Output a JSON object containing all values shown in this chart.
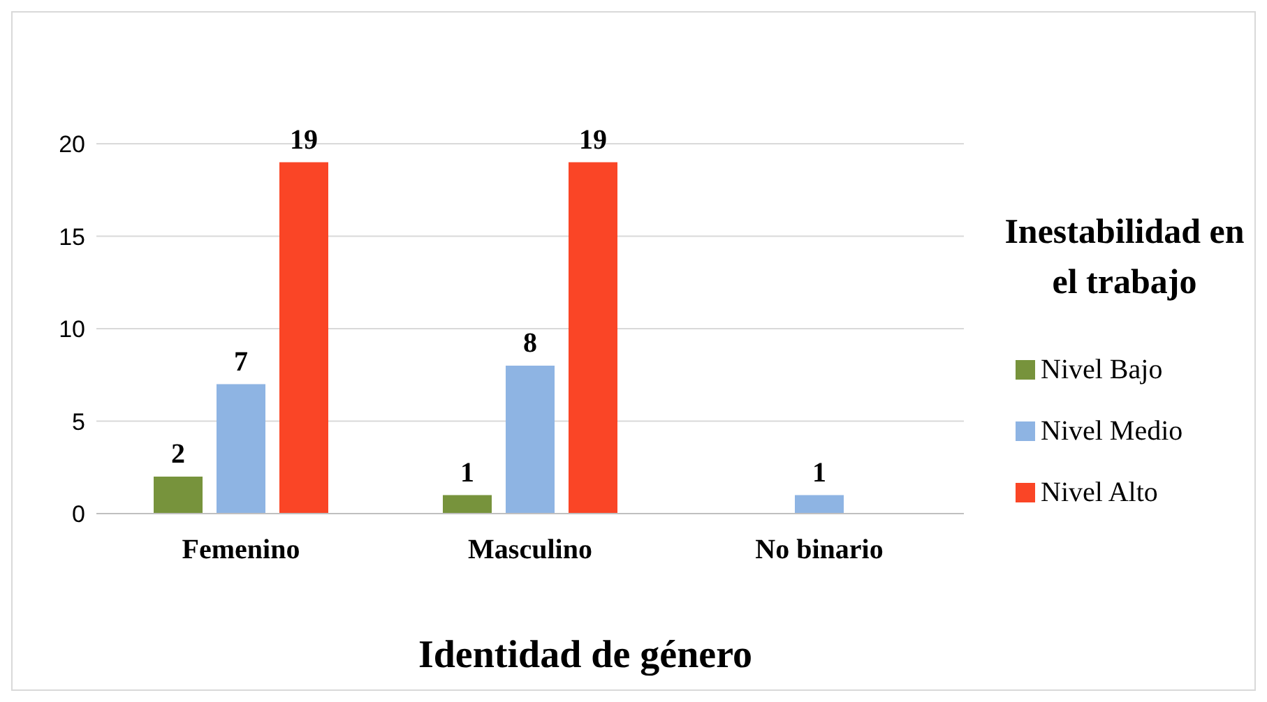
{
  "chart_data": {
    "type": "bar",
    "xlabel": "Identidad de género",
    "legend_title": "Inestabilidad en el trabajo",
    "categories": [
      "Femenino",
      "Masculino",
      "No binario"
    ],
    "series": [
      {
        "name": "Nivel Bajo",
        "color": "#77933c",
        "values": [
          2,
          1,
          null
        ]
      },
      {
        "name": "Nivel Medio",
        "color": "#8eb4e3",
        "values": [
          7,
          8,
          1
        ]
      },
      {
        "name": "Nivel Alto",
        "color": "#fa4526",
        "values": [
          19,
          19,
          null
        ]
      }
    ],
    "ylim": [
      0,
      20
    ],
    "yticks": [
      0,
      5,
      10,
      15,
      20
    ],
    "grid": "y",
    "legend": "right",
    "data_labels": true
  }
}
